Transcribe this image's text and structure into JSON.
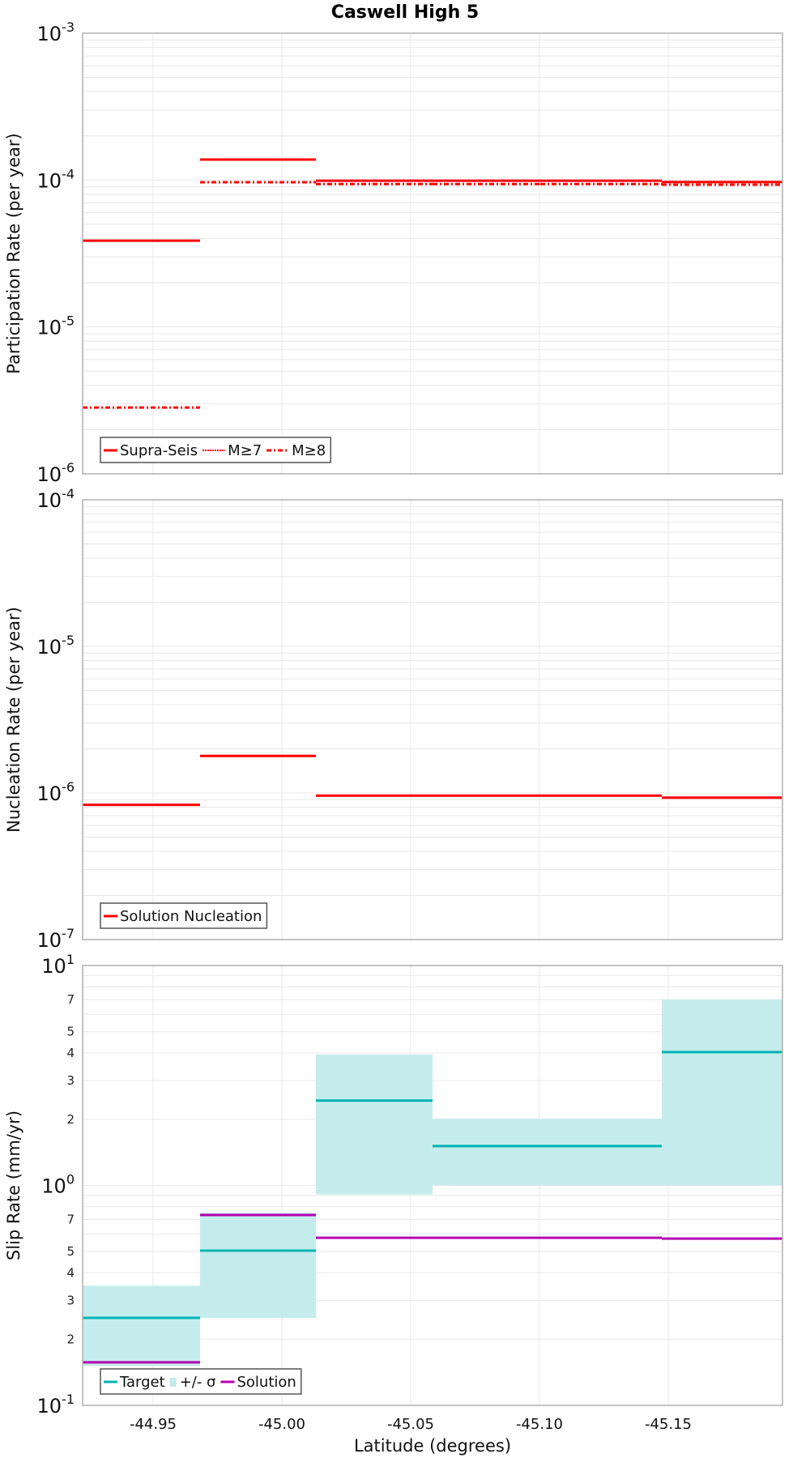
{
  "title": "Caswell High 5",
  "xlabel": "Latitude (degrees)",
  "chart_data": [
    {
      "type": "line",
      "step": true,
      "title": "Caswell High 5",
      "ylabel": "Participation Rate (per year)",
      "xlabel": "",
      "yscale": "log",
      "ylim": [
        1e-06,
        0.001
      ],
      "xlim": [
        -44.923,
        -45.194
      ],
      "grid": true,
      "legend_position": "lower left",
      "segments_x": [
        [
          -44.923,
          -44.968
        ],
        [
          -44.968,
          -45.013
        ],
        [
          -45.013,
          -45.0585
        ],
        [
          -45.0585,
          -45.1
        ],
        [
          -45.1,
          -45.1475
        ],
        [
          -45.1475,
          -45.194
        ]
      ],
      "series": [
        {
          "name": "Supra-Seis",
          "style": "solid",
          "color": "#ff0000",
          "values": [
            3.87e-05,
            0.000138,
            9.9e-05,
            9.9e-05,
            9.9e-05,
            9.7e-05
          ]
        },
        {
          "name": "M≥7",
          "style": "dotted",
          "color": "#ff0000",
          "values": [
            3.87e-05,
            0.000138,
            9.9e-05,
            9.9e-05,
            9.9e-05,
            9.7e-05
          ]
        },
        {
          "name": "M≥8",
          "style": "dashdot",
          "color": "#ff0000",
          "values": [
            2.83e-06,
            9.66e-05,
            9.4e-05,
            9.4e-05,
            9.4e-05,
            9.3e-05
          ]
        }
      ],
      "yticks": [
        "10^-3",
        "10^-4",
        "10^-5",
        "10^-6"
      ]
    },
    {
      "type": "line",
      "step": true,
      "ylabel": "Nucleation Rate (per year)",
      "yscale": "log",
      "ylim": [
        1e-07,
        0.0001
      ],
      "grid": true,
      "legend_position": "lower left",
      "series": [
        {
          "name": "Solution Nucleation",
          "style": "solid",
          "color": "#ff0000",
          "values": [
            8.3e-07,
            1.79e-06,
            9.6e-07,
            9.6e-07,
            9.6e-07,
            9.3e-07
          ]
        }
      ],
      "yticks": [
        "10^-4",
        "10^-5",
        "10^-6",
        "10^-7"
      ]
    },
    {
      "type": "line",
      "step": true,
      "ylabel": "Slip Rate (mm/yr)",
      "xlabel": "Latitude (degrees)",
      "yscale": "log",
      "ylim": [
        0.1,
        10
      ],
      "grid": true,
      "legend_position": "lower left",
      "series": [
        {
          "name": "Target",
          "style": "solid",
          "color": "#00b3b3",
          "values": [
            0.25,
            0.505,
            2.43,
            1.51,
            1.51,
            4.04
          ]
        },
        {
          "name": "+/- σ",
          "style": "band",
          "color": "#c2ebeb",
          "lower": [
            0.151,
            0.25,
            0.91,
            1.0,
            1.0,
            1.0
          ],
          "upper": [
            0.35,
            0.75,
            3.94,
            2.01,
            2.01,
            7.0
          ]
        },
        {
          "name": "Solution",
          "style": "solid",
          "color": "#b300b3",
          "values": [
            0.157,
            0.734,
            0.578,
            0.578,
            0.578,
            0.573
          ]
        }
      ],
      "yticks": [
        "10^1",
        "10^0",
        "10^-1"
      ],
      "minor_tick_labels": [
        "2",
        "3",
        "4",
        "5",
        "7"
      ],
      "xticks": [
        "-44.95",
        "-45.00",
        "-45.05",
        "-45.10",
        "-45.15"
      ]
    }
  ],
  "x_ticks": [
    {
      "label": "-44.95",
      "value": -44.95
    },
    {
      "label": "-45.00",
      "value": -45.0
    },
    {
      "label": "-45.05",
      "value": -45.05
    },
    {
      "label": "-45.10",
      "value": -45.1
    },
    {
      "label": "-45.15",
      "value": -45.15
    }
  ],
  "colors": {
    "rate_red": "#ff0000",
    "target_teal": "#00b3b3",
    "band_teal": "#c2ebeb",
    "solution_magenta": "#b300b3",
    "grid": "#e8e8e8",
    "frame": "#b0b0b0"
  }
}
